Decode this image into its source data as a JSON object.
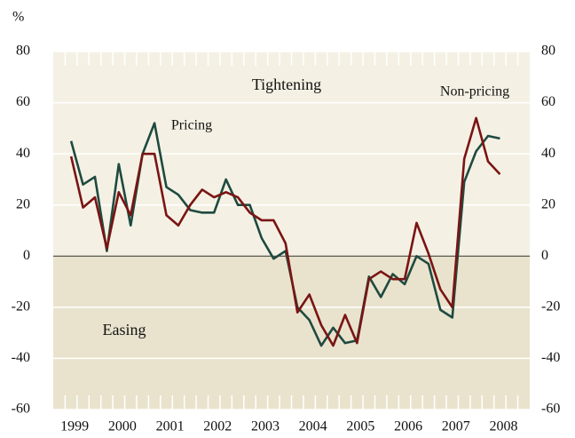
{
  "chart_data": {
    "type": "line",
    "unit_label": "%",
    "annotations": [
      "Tightening",
      "Easing"
    ],
    "x": [
      1999.375,
      1999.625,
      1999.875,
      2000.125,
      2000.375,
      2000.625,
      2000.875,
      2001.125,
      2001.375,
      2001.625,
      2001.875,
      2002.125,
      2002.375,
      2002.625,
      2002.875,
      2003.125,
      2003.375,
      2003.625,
      2003.875,
      2004.125,
      2004.375,
      2004.625,
      2004.875,
      2005.125,
      2005.375,
      2005.625,
      2005.875,
      2006.125,
      2006.375,
      2006.625,
      2006.875,
      2007.125,
      2007.375,
      2007.625,
      2007.875,
      2008.125,
      2008.375
    ],
    "series": [
      {
        "name": "Pricing",
        "color": "#1f4a40",
        "values": [
          45,
          28,
          31,
          2,
          36,
          12,
          40,
          52,
          27,
          24,
          18,
          17,
          17,
          30,
          20,
          20,
          7,
          -1,
          2,
          -20,
          -25,
          -35,
          -28,
          -34,
          -33,
          -8,
          -16,
          -7,
          -11,
          0,
          -3,
          -21,
          -24,
          29,
          41,
          47,
          46
        ]
      },
      {
        "name": "Non-pricing",
        "color": "#7a1414",
        "values": [
          39,
          19,
          23,
          3,
          25,
          16,
          40,
          40,
          16,
          12,
          20,
          26,
          23,
          25,
          23,
          17,
          14,
          14,
          5,
          -22,
          -15,
          -27,
          -35,
          -23,
          -34,
          -9,
          -6,
          -9,
          -9,
          13,
          1,
          -13,
          -20,
          38,
          54,
          37,
          32
        ]
      }
    ],
    "xlim": [
      1999,
      2009
    ],
    "xticks": [
      {
        "value": 1999.45,
        "label": "1999"
      },
      {
        "value": 2000.45,
        "label": "2000"
      },
      {
        "value": 2001.45,
        "label": "2001"
      },
      {
        "value": 2002.45,
        "label": "2002"
      },
      {
        "value": 2003.45,
        "label": "2003"
      },
      {
        "value": 2004.45,
        "label": "2004"
      },
      {
        "value": 2005.45,
        "label": "2005"
      },
      {
        "value": 2006.45,
        "label": "2006"
      },
      {
        "value": 2007.45,
        "label": "2007"
      },
      {
        "value": 2008.45,
        "label": "2008"
      }
    ],
    "ylim": [
      -60,
      80
    ],
    "yticks": [
      -60,
      -40,
      -20,
      0,
      20,
      40,
      60,
      80
    ],
    "grid": true
  }
}
